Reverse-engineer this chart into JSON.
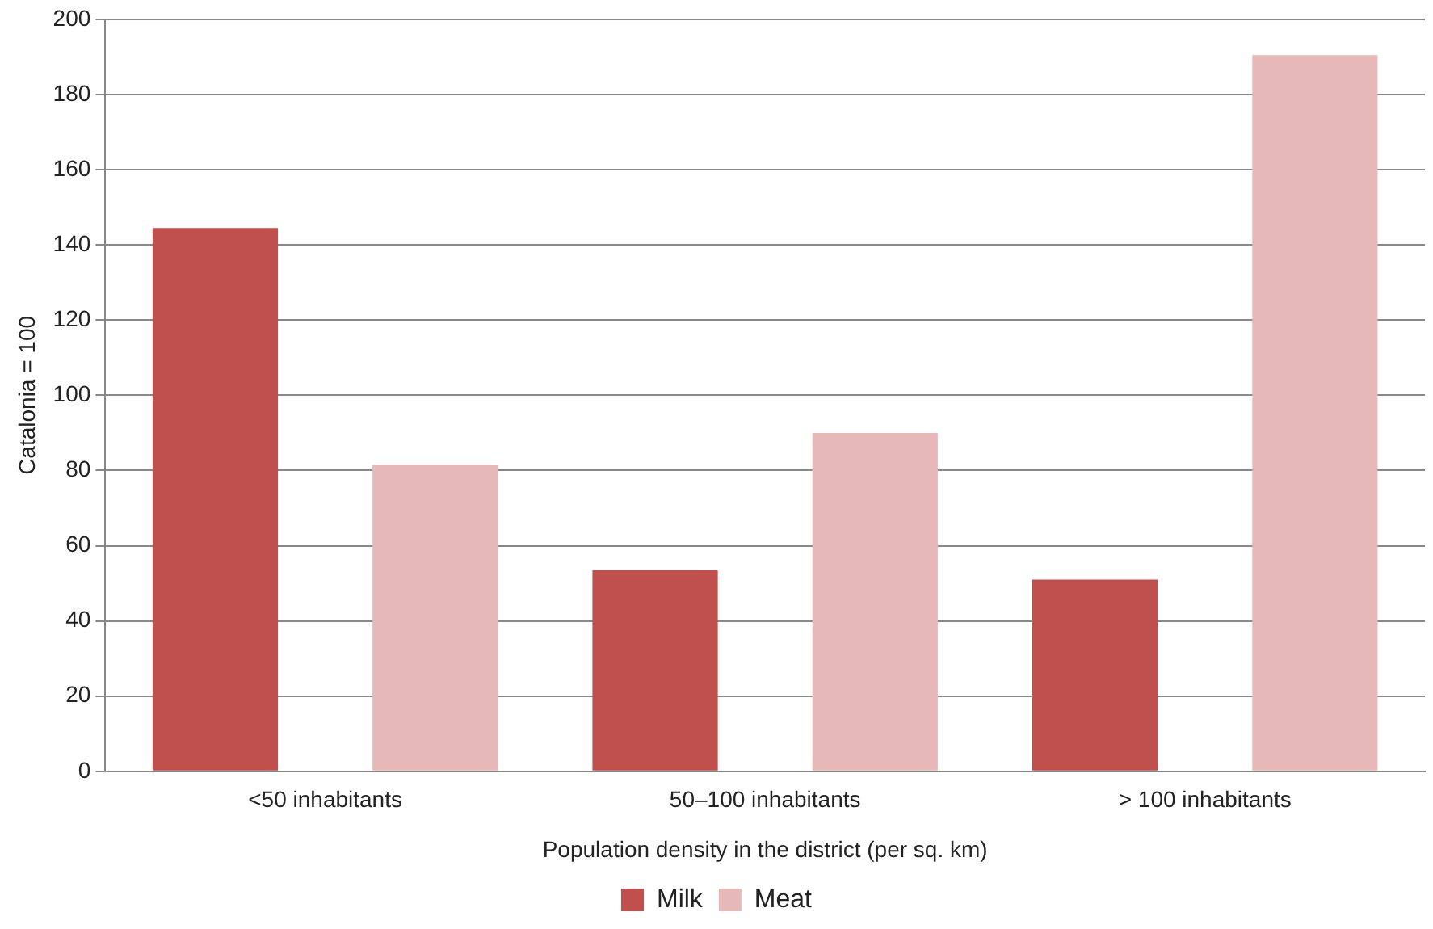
{
  "chart_data": {
    "type": "bar",
    "xlabel": "Population density in the district (per sq. km)",
    "ylabel": "Catalonia = 100",
    "categories": [
      "<50 inhabitants",
      "50–100 inhabitants",
      "> 100 inhabitants"
    ],
    "series": [
      {
        "name": "Milk",
        "color": "#c0504d",
        "values": [
          144.5,
          53.5,
          51
        ]
      },
      {
        "name": "Meat",
        "color": "#e6b9b8",
        "values": [
          81.5,
          90,
          190.5
        ]
      }
    ],
    "ylim": [
      0,
      200
    ],
    "yticks": [
      0,
      20,
      40,
      60,
      80,
      100,
      120,
      140,
      160,
      180,
      200
    ],
    "grid": "y",
    "legend": "bottom"
  }
}
